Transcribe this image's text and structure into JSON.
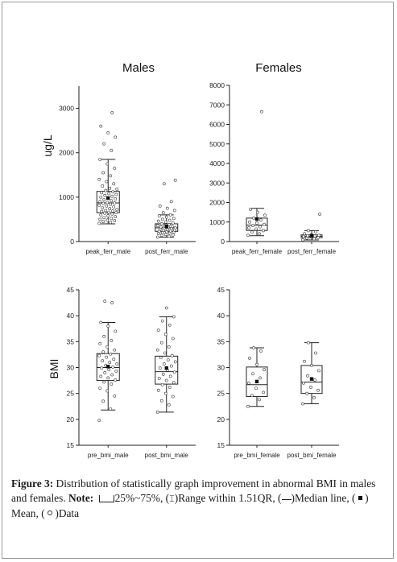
{
  "titles": {
    "males": "Males",
    "females": "Females"
  },
  "ylabels": {
    "ferritin": "ug/L",
    "bmi": "BMI"
  },
  "caption": {
    "label": "Figure 3:",
    "text": " Distribution of statistically graph improvement in abnormal BMI in males and females. ",
    "note_label": "Note:",
    "legend_box": "25%~75%,",
    "legend_range": "Range within 1.51QR,",
    "legend_median": "Median line,",
    "legend_mean": "Mean,",
    "legend_data": "Data"
  },
  "chart_data": [
    {
      "type": "box",
      "panel": "males-ferritin",
      "title": "Males",
      "ylabel": "ug/L",
      "ylim": [
        0,
        3500
      ],
      "yticks": [
        0,
        1000,
        2000,
        3000
      ],
      "categories": [
        "peak_ferr_male",
        "post_ferr_male"
      ],
      "boxes": [
        {
          "q1": 650,
          "median": 870,
          "q3": 1130,
          "whisker_low": 400,
          "whisker_high": 1850,
          "mean": 980,
          "points": [
            410,
            430,
            450,
            470,
            480,
            500,
            520,
            540,
            560,
            580,
            600,
            620,
            640,
            650,
            660,
            680,
            690,
            700,
            720,
            740,
            760,
            780,
            800,
            820,
            840,
            860,
            870,
            880,
            900,
            920,
            940,
            960,
            980,
            1000,
            1020,
            1040,
            1060,
            1080,
            1100,
            1120,
            1150,
            1180,
            1200,
            1250,
            1300,
            1350,
            1400,
            1480,
            1550,
            1650,
            1750,
            1850,
            2050,
            2200,
            2350,
            2450,
            2600,
            2900
          ]
        },
        {
          "q1": 230,
          "median": 310,
          "q3": 400,
          "whisker_low": 100,
          "whisker_high": 600,
          "mean": 340,
          "points": [
            100,
            120,
            140,
            150,
            160,
            180,
            190,
            200,
            210,
            220,
            230,
            240,
            250,
            260,
            270,
            280,
            290,
            300,
            310,
            320,
            330,
            340,
            350,
            360,
            380,
            400,
            420,
            440,
            460,
            480,
            500,
            520,
            550,
            580,
            600,
            650,
            700,
            750,
            800,
            900,
            1300,
            1380
          ]
        }
      ]
    },
    {
      "type": "box",
      "panel": "females-ferritin",
      "title": "Females",
      "ylabel": "",
      "ylim": [
        0,
        8000
      ],
      "yticks": [
        0,
        1000,
        2000,
        3000,
        4000,
        5000,
        6000,
        7000,
        8000
      ],
      "categories": [
        "peak_ferr_female",
        "post_ferr_female"
      ],
      "boxes": [
        {
          "q1": 570,
          "median": 840,
          "q3": 1200,
          "whisker_low": 300,
          "whisker_high": 1700,
          "mean": 1150,
          "points": [
            320,
            400,
            480,
            560,
            640,
            700,
            760,
            820,
            880,
            940,
            1000,
            1100,
            1200,
            1350,
            1500,
            1650,
            6650
          ]
        },
        {
          "q1": 200,
          "median": 270,
          "q3": 340,
          "whisker_low": 80,
          "whisker_high": 560,
          "mean": 300,
          "points": [
            90,
            140,
            180,
            210,
            240,
            260,
            280,
            300,
            320,
            350,
            400,
            500,
            560,
            1400
          ]
        }
      ]
    },
    {
      "type": "box",
      "panel": "males-bmi",
      "title": "",
      "ylabel": "BMI",
      "ylim": [
        15,
        45
      ],
      "yticks": [
        15,
        20,
        25,
        30,
        35,
        40,
        45
      ],
      "categories": [
        "pre_bmi_male",
        "post_bmi_male"
      ],
      "boxes": [
        {
          "q1": 27.5,
          "median": 30.0,
          "q3": 32.7,
          "whisker_low": 21.8,
          "whisker_high": 38.7,
          "mean": 30.2,
          "points": [
            19.8,
            22.0,
            23.5,
            24.5,
            25.5,
            26.0,
            26.8,
            27.2,
            27.6,
            28.0,
            28.3,
            28.6,
            29.0,
            29.3,
            29.6,
            29.9,
            30.1,
            30.4,
            30.7,
            31.0,
            31.3,
            31.6,
            32.0,
            32.3,
            32.6,
            33.0,
            33.4,
            34.0,
            34.6,
            35.2,
            36.0,
            37.0,
            38.0,
            38.7,
            42.5,
            42.8
          ]
        },
        {
          "q1": 26.8,
          "median": 29.2,
          "q3": 32.2,
          "whisker_low": 21.4,
          "whisker_high": 39.8,
          "mean": 29.9,
          "points": [
            21.4,
            22.8,
            23.6,
            24.4,
            25.0,
            25.6,
            26.2,
            26.7,
            27.1,
            27.5,
            27.9,
            28.3,
            28.7,
            29.1,
            29.5,
            29.9,
            30.3,
            30.7,
            31.1,
            31.5,
            31.9,
            32.3,
            32.8,
            33.4,
            34.0,
            34.8,
            35.6,
            36.4,
            37.2,
            38.2,
            39.0,
            39.8,
            41.5
          ]
        }
      ]
    },
    {
      "type": "box",
      "panel": "females-bmi",
      "title": "",
      "ylabel": "",
      "ylim": [
        15,
        45
      ],
      "yticks": [
        15,
        20,
        25,
        30,
        35,
        40,
        45
      ],
      "categories": [
        "pre_bmi_female",
        "post_bmi_female"
      ],
      "boxes": [
        {
          "q1": 24.4,
          "median": 26.7,
          "q3": 30.1,
          "whisker_low": 22.5,
          "whisker_high": 33.8,
          "mean": 27.3,
          "points": [
            22.5,
            23.8,
            24.6,
            25.2,
            26.0,
            27.0,
            28.0,
            28.8,
            29.6,
            30.6,
            31.8,
            33.2,
            33.8
          ]
        },
        {
          "q1": 25.0,
          "median": 27.2,
          "q3": 30.4,
          "whisker_low": 23.0,
          "whisker_high": 34.8,
          "mean": 27.8,
          "points": [
            23.0,
            24.2,
            25.0,
            25.6,
            26.2,
            27.0,
            27.6,
            28.4,
            29.4,
            30.4,
            31.2,
            32.8,
            34.8
          ]
        }
      ]
    }
  ]
}
